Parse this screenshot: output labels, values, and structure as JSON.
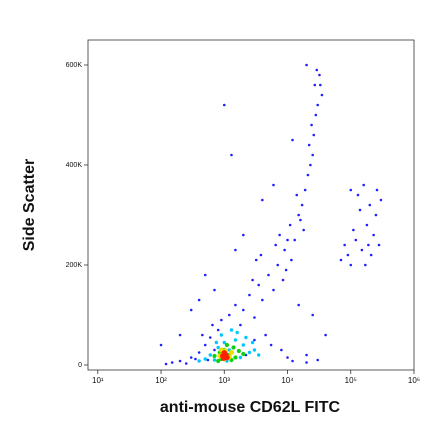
{
  "chart_data": {
    "type": "scatter",
    "x_label": "anti-mouse CD62L FITC",
    "y_label": "Side Scatter",
    "xscale": "log",
    "xlim": [
      7,
      1000000
    ],
    "ylim": [
      -10000,
      650000
    ],
    "xticks": [
      {
        "value": 10,
        "label": "10¹"
      },
      {
        "value": 100,
        "label": "10²"
      },
      {
        "value": 1000,
        "label": "10³"
      },
      {
        "value": 10000,
        "label": "10⁴"
      },
      {
        "value": 100000,
        "label": "10⁵"
      },
      {
        "value": 1000000,
        "label": "10⁶"
      }
    ],
    "yticks": [
      0,
      {
        "value": 200000,
        "label": "200K"
      },
      {
        "value": 400000,
        "label": "400K"
      },
      {
        "value": 600000,
        "label": "600K"
      }
    ],
    "grid": false,
    "series": [
      {
        "color": "#2020ff",
        "x": [
          150,
          200,
          120,
          300,
          250,
          400,
          500,
          350,
          600,
          700,
          800,
          900,
          450,
          550,
          650,
          1200,
          1500,
          1800,
          2000,
          2500,
          3000,
          3500,
          4000,
          5000,
          6000,
          7000,
          4500,
          5500,
          3000,
          2200,
          8000,
          10000,
          12000,
          20000,
          2800,
          3200,
          3800,
          6500,
          7500,
          9000,
          11000,
          13000,
          15000,
          17000,
          19000,
          21000,
          23000,
          25000,
          18000,
          16000,
          14000,
          22000,
          26000,
          24000,
          28000,
          30000,
          27000,
          32000,
          29000,
          20000,
          33000,
          35000,
          12000,
          10000,
          9500,
          11500,
          8500,
          1000,
          2000,
          1500,
          500,
          300,
          700,
          200,
          100,
          400,
          1300,
          4000,
          6000,
          15000,
          25000,
          40000,
          20000,
          30000,
          100000,
          120000,
          150000,
          180000,
          200000,
          250000,
          110000,
          130000,
          160000,
          210000,
          230000,
          280000,
          300000,
          140000,
          170000,
          90000,
          80000,
          70000,
          100000,
          260000,
          190000
        ],
        "values": [
          5000,
          8000,
          2000,
          15000,
          3000,
          25000,
          40000,
          12000,
          55000,
          30000,
          70000,
          90000,
          60000,
          10000,
          80000,
          100000,
          120000,
          80000,
          110000,
          140000,
          95000,
          160000,
          130000,
          180000,
          150000,
          200000,
          60000,
          40000,
          50000,
          20000,
          30000,
          15000,
          8000,
          5000,
          170000,
          210000,
          220000,
          240000,
          260000,
          230000,
          280000,
          250000,
          300000,
          320000,
          350000,
          380000,
          400000,
          420000,
          270000,
          290000,
          340000,
          440000,
          460000,
          480000,
          500000,
          520000,
          560000,
          580000,
          590000,
          600000,
          560000,
          540000,
          450000,
          250000,
          190000,
          210000,
          170000,
          520000,
          260000,
          230000,
          180000,
          110000,
          150000,
          60000,
          40000,
          130000,
          420000,
          330000,
          360000,
          120000,
          100000,
          60000,
          20000,
          10000,
          200000,
          250000,
          230000,
          280000,
          320000,
          300000,
          270000,
          340000,
          360000,
          220000,
          260000,
          240000,
          330000,
          310000,
          200000,
          220000,
          240000,
          210000,
          350000,
          350000,
          240000
        ]
      },
      {
        "color": "#00c8ff",
        "x": [
          600,
          800,
          1000,
          1200,
          1500,
          2000,
          2500,
          700,
          1800,
          3000,
          900,
          1300,
          2200,
          400,
          500,
          3500,
          1100,
          1600,
          2800,
          750
        ],
        "values": [
          20000,
          35000,
          45000,
          30000,
          50000,
          40000,
          25000,
          10000,
          15000,
          30000,
          60000,
          70000,
          55000,
          8000,
          12000,
          20000,
          8000,
          65000,
          45000,
          45000
        ]
      },
      {
        "color": "#10d010",
        "x": [
          700,
          850,
          1000,
          1200,
          1400,
          1700,
          2000,
          900,
          1100,
          1500,
          800,
          1300
        ],
        "values": [
          18000,
          25000,
          30000,
          20000,
          35000,
          28000,
          22000,
          12000,
          40000,
          15000,
          8000,
          10000
        ]
      },
      {
        "color": "#f0e000",
        "x": [
          850,
          950,
          1050,
          1200,
          1000,
          1300,
          900
        ],
        "values": [
          18000,
          22000,
          28000,
          16000,
          12000,
          25000,
          30000
        ]
      },
      {
        "color": "#ff2000",
        "x": [
          950,
          1050,
          1000,
          1100,
          980
        ],
        "values": [
          18000,
          20000,
          24000,
          15000,
          14000
        ]
      }
    ]
  }
}
